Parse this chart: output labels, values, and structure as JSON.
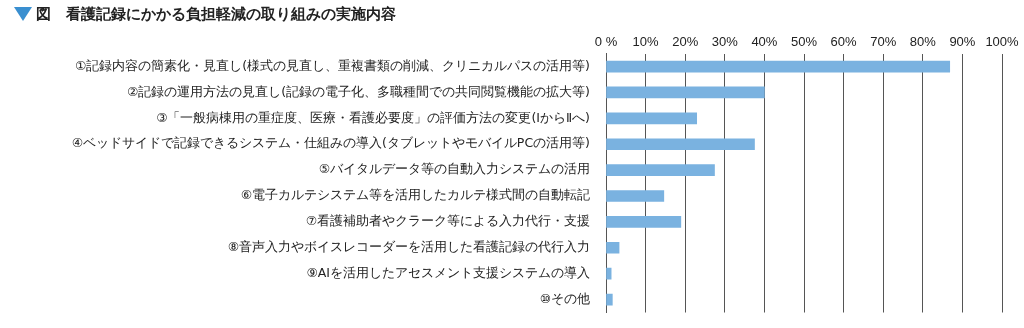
{
  "chart_data": {
    "type": "bar",
    "orientation": "horizontal",
    "title": "図　看護記録にかかる負担軽減の取り組みの実施内容",
    "categories": [
      "①記録内容の簡素化・見直し(様式の見直し、重複書類の削減、クリニカルパスの活用等)",
      "②記録の運用方法の見直し(記録の電子化、多職種間での共同閲覧機能の拡大等)",
      "③「一般病棟用の重症度、医療・看護必要度」の評価方法の変更(ⅠからⅡへ)",
      "④ベッドサイドで記録できるシステム・仕組みの導入(タブレットやモバイルPCの活用等)",
      "⑤バイタルデータ等の自動入力システムの活用",
      "⑥電子カルテシステム等を活用したカルテ様式間の自動転記",
      "⑦看護補助者やクラーク等による入力代行・支援",
      "⑧音声入力やボイスレコーダーを活用した看護記録の代行入力",
      "⑨AIを活用したアセスメント支援システムの導入",
      "⑩その他"
    ],
    "values": [
      86.8,
      40.0,
      22.9,
      37.5,
      27.4,
      14.6,
      18.9,
      3.3,
      1.3,
      1.6
    ],
    "color": "#7ab2e0",
    "xlim": [
      0,
      100
    ],
    "xticks": [
      {
        "value": 0,
        "label": "0 %"
      },
      {
        "value": 10,
        "label": "10%"
      },
      {
        "value": 20,
        "label": "20%"
      },
      {
        "value": 30,
        "label": "30%"
      },
      {
        "value": 40,
        "label": "40%"
      },
      {
        "value": 50,
        "label": "50%"
      },
      {
        "value": 60,
        "label": "60%"
      },
      {
        "value": 70,
        "label": "70%"
      },
      {
        "value": 80,
        "label": "80%"
      },
      {
        "value": 90,
        "label": "90%"
      },
      {
        "value": 100,
        "label": "100%"
      }
    ],
    "grid": "x",
    "legend": false
  }
}
